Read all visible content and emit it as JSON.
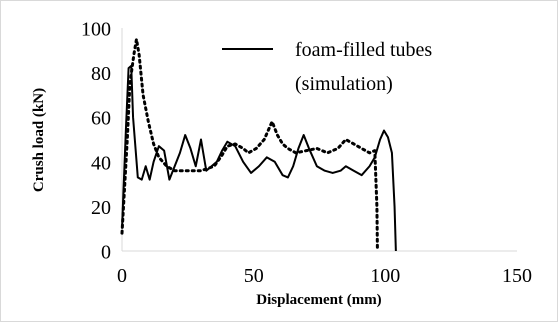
{
  "chart_data": {
    "type": "line",
    "xlabel": "Displacement (mm)",
    "ylabel": "Crush load (kN)",
    "xlim": [
      0,
      150
    ],
    "ylim": [
      0,
      100
    ],
    "x_ticks": [
      0,
      50,
      100,
      150
    ],
    "y_ticks": [
      0,
      20,
      40,
      60,
      80,
      100
    ],
    "x_tick_labels": [
      "0",
      "50",
      "100",
      "150"
    ],
    "y_tick_labels": [
      "0",
      "20",
      "40",
      "60",
      "80",
      "100"
    ],
    "grid": false,
    "legend": {
      "placement": "top-right",
      "entries": [
        "foam-filled tubes",
        "(simulation)"
      ]
    },
    "series": [
      {
        "name": "foam-filled tubes (simulation)",
        "style": "solid",
        "color": "#000000",
        "points": [
          [
            0,
            10
          ],
          [
            1.5,
            55
          ],
          [
            2.5,
            82
          ],
          [
            3.5,
            83
          ],
          [
            4.2,
            60
          ],
          [
            5,
            48
          ],
          [
            6,
            33
          ],
          [
            7.5,
            32
          ],
          [
            9,
            38
          ],
          [
            10.5,
            32
          ],
          [
            12,
            40
          ],
          [
            14,
            47
          ],
          [
            16,
            45
          ],
          [
            18,
            32
          ],
          [
            20,
            38
          ],
          [
            22,
            44
          ],
          [
            24,
            52
          ],
          [
            26,
            46
          ],
          [
            28,
            38
          ],
          [
            30,
            50
          ],
          [
            31,
            43
          ],
          [
            32,
            36
          ],
          [
            34,
            38
          ],
          [
            36,
            40
          ],
          [
            38,
            45
          ],
          [
            40,
            49
          ],
          [
            43,
            47
          ],
          [
            46,
            40
          ],
          [
            49,
            35
          ],
          [
            52,
            38
          ],
          [
            55,
            42
          ],
          [
            58,
            40
          ],
          [
            61,
            34
          ],
          [
            63,
            33
          ],
          [
            65,
            38
          ],
          [
            67,
            46
          ],
          [
            69,
            52
          ],
          [
            71,
            46
          ],
          [
            74,
            38
          ],
          [
            77,
            36
          ],
          [
            80,
            35
          ],
          [
            83,
            36
          ],
          [
            85,
            38
          ],
          [
            88,
            36
          ],
          [
            91,
            34
          ],
          [
            94,
            38
          ],
          [
            96,
            42
          ],
          [
            98,
            50
          ],
          [
            99.5,
            54
          ],
          [
            101,
            51
          ],
          [
            102.5,
            44
          ],
          [
            103.5,
            20
          ],
          [
            104,
            0
          ]
        ]
      },
      {
        "name": "",
        "style": "dotted",
        "color": "#000000",
        "points": [
          [
            0,
            8
          ],
          [
            2,
            50
          ],
          [
            3,
            75
          ],
          [
            4.5,
            88
          ],
          [
            5.5,
            95
          ],
          [
            6.5,
            88
          ],
          [
            8,
            70
          ],
          [
            10,
            58
          ],
          [
            12,
            48
          ],
          [
            14,
            42
          ],
          [
            17,
            38
          ],
          [
            20,
            36
          ],
          [
            25,
            36
          ],
          [
            30,
            36
          ],
          [
            35,
            38
          ],
          [
            38,
            43
          ],
          [
            40,
            47
          ],
          [
            43,
            48
          ],
          [
            46,
            46
          ],
          [
            48,
            44
          ],
          [
            51,
            46
          ],
          [
            54,
            50
          ],
          [
            57,
            58
          ],
          [
            59,
            52
          ],
          [
            61,
            48
          ],
          [
            63,
            46
          ],
          [
            66,
            44
          ],
          [
            70,
            45
          ],
          [
            74,
            46
          ],
          [
            78,
            44
          ],
          [
            82,
            46
          ],
          [
            85,
            50
          ],
          [
            88,
            48
          ],
          [
            91,
            46
          ],
          [
            94,
            44
          ],
          [
            96,
            45
          ],
          [
            96.8,
            20
          ],
          [
            97,
            0
          ]
        ]
      }
    ]
  }
}
